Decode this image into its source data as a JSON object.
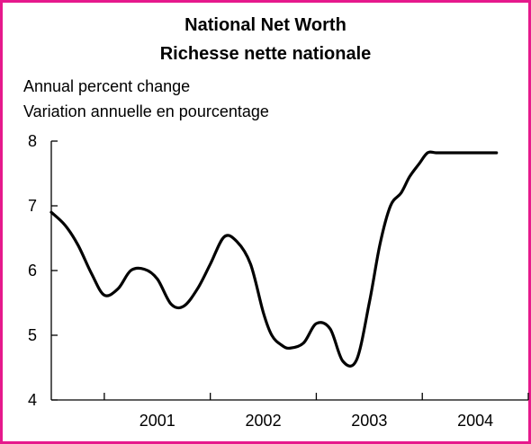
{
  "chart_data": {
    "type": "line",
    "title": "National Net Worth",
    "title_fr": "Richesse nette nationale",
    "ylabel": "Annual percent change",
    "ylabel_fr": "Variation annuelle en pourcentage",
    "xlabel": "",
    "ylim": [
      4,
      8
    ],
    "yticks": [
      4,
      5,
      6,
      7,
      8
    ],
    "xlim": [
      2000.0,
      2004.5
    ],
    "x_category_labels": [
      "2001",
      "2002",
      "2003",
      "2004"
    ],
    "x_category_centers": [
      2001.0,
      2002.0,
      2003.0,
      2004.0
    ],
    "x_dividers": [
      2000.5,
      2001.5,
      2002.5,
      2003.5,
      2004.5
    ],
    "grid": false,
    "legend": "none",
    "line_color": "#000000",
    "frame_color": "#e6198c",
    "series": [
      {
        "x": [
          2000.0,
          2000.13,
          2000.25,
          2000.38,
          2000.5,
          2000.63,
          2000.75,
          2000.88,
          2001.0,
          2001.13,
          2001.25,
          2001.38,
          2001.5,
          2001.63,
          2001.75,
          2001.88,
          2002.0,
          2002.08,
          2002.17,
          2002.25,
          2002.38,
          2002.5,
          2002.63,
          2002.75,
          2002.88,
          2003.0,
          2003.1,
          2003.2,
          2003.3,
          2003.38,
          2003.47,
          2003.55,
          2003.63,
          2003.75,
          2003.88,
          2004.0,
          2004.08,
          2004.2
        ],
        "values": [
          6.9,
          6.7,
          6.4,
          5.95,
          5.62,
          5.72,
          6.0,
          6.02,
          5.87,
          5.48,
          5.45,
          5.72,
          6.1,
          6.52,
          6.45,
          6.1,
          5.35,
          5.0,
          4.85,
          4.8,
          4.88,
          5.18,
          5.1,
          4.6,
          4.62,
          5.5,
          6.4,
          7.0,
          7.2,
          7.45,
          7.65,
          7.82,
          7.82,
          7.82,
          7.82,
          7.82,
          7.82,
          7.82
        ]
      }
    ]
  }
}
